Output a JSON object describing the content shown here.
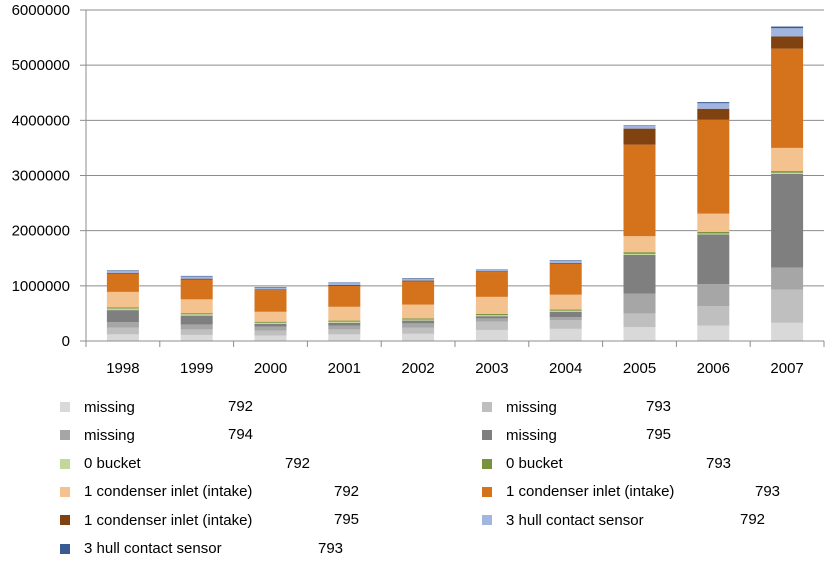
{
  "chart_data": {
    "type": "bar",
    "stacked": true,
    "categories": [
      "1998",
      "1999",
      "2000",
      "2001",
      "2002",
      "2003",
      "2004",
      "2005",
      "2006",
      "2007"
    ],
    "ylim": [
      0,
      6000000
    ],
    "yticks": [
      "0",
      "1000000",
      "2000000",
      "3000000",
      "4000000",
      "5000000",
      "6000000"
    ],
    "grid": true,
    "legend_position": "bottom",
    "series": [
      {
        "name": "missing",
        "code": "792",
        "color": "#d9d9d9",
        "values": [
          120000,
          110000,
          100000,
          120000,
          130000,
          200000,
          220000,
          250000,
          280000,
          330000
        ]
      },
      {
        "name": "missing",
        "code": "793",
        "color": "#bfbfbf",
        "values": [
          120000,
          100000,
          90000,
          90000,
          110000,
          150000,
          160000,
          250000,
          350000,
          600000
        ]
      },
      {
        "name": "missing",
        "code": "794",
        "color": "#a6a6a6",
        "values": [
          100000,
          90000,
          70000,
          70000,
          80000,
          60000,
          50000,
          360000,
          400000,
          400000
        ]
      },
      {
        "name": "missing",
        "code": "795",
        "color": "#7f7f7f",
        "values": [
          220000,
          160000,
          50000,
          50000,
          50000,
          40000,
          100000,
          700000,
          900000,
          1700000
        ]
      },
      {
        "name": "0 bucket",
        "code": "792",
        "color": "#c4d79b",
        "values": [
          30000,
          25000,
          20000,
          20000,
          20000,
          20000,
          20000,
          20000,
          20000,
          20000
        ]
      },
      {
        "name": "0 bucket",
        "code": "793",
        "color": "#77933c",
        "values": [
          20000,
          20000,
          20000,
          20000,
          20000,
          20000,
          20000,
          30000,
          30000,
          30000
        ]
      },
      {
        "name": "1 condenser inlet (intake)",
        "code": "792",
        "color": "#f4c28f",
        "values": [
          280000,
          250000,
          180000,
          250000,
          250000,
          310000,
          270000,
          290000,
          330000,
          420000
        ]
      },
      {
        "name": "1 condenser inlet (intake)",
        "code": "793",
        "color": "#d4731c",
        "values": [
          330000,
          360000,
          390000,
          380000,
          420000,
          450000,
          560000,
          1660000,
          1700000,
          1800000
        ]
      },
      {
        "name": "1 condenser inlet (intake)",
        "code": "795",
        "color": "#7f4210",
        "values": [
          15000,
          15000,
          15000,
          15000,
          15000,
          15000,
          15000,
          290000,
          200000,
          220000
        ]
      },
      {
        "name": "3 hull contact sensor",
        "code": "792",
        "color": "#a0b5e0",
        "values": [
          35000,
          40000,
          35000,
          35000,
          35000,
          30000,
          40000,
          50000,
          100000,
          150000
        ]
      },
      {
        "name": "3 hull contact sensor",
        "code": "793",
        "color": "#3a5a92",
        "values": [
          10000,
          10000,
          10000,
          10000,
          10000,
          5000,
          10000,
          10000,
          20000,
          30000
        ]
      }
    ]
  }
}
